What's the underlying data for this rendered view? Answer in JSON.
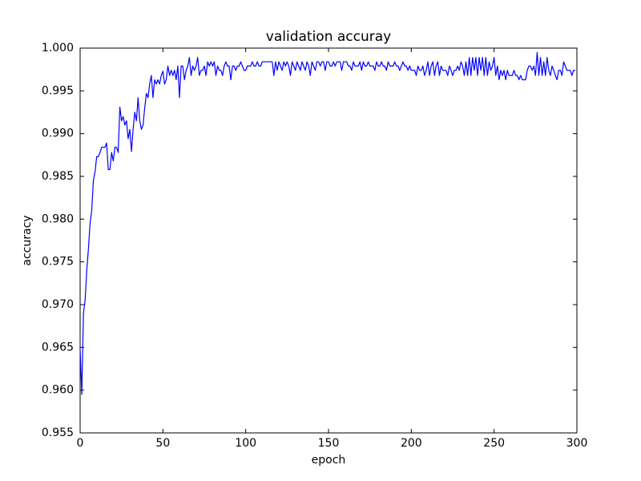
{
  "chart_data": {
    "type": "line",
    "title": "validation accuray",
    "xlabel": "epoch",
    "ylabel": "accuracy",
    "color": "#0000ff",
    "x": [
      0,
      1,
      2,
      3,
      4,
      5,
      6,
      7,
      8,
      9,
      10,
      11,
      12,
      13,
      14,
      15,
      16,
      17,
      18,
      19,
      20,
      21,
      22,
      23,
      24,
      25,
      26,
      27,
      28,
      29,
      30,
      31,
      32,
      33,
      34,
      35,
      36,
      37,
      38,
      39,
      40,
      41,
      42,
      43,
      44,
      45,
      46,
      47,
      48,
      49,
      50,
      51,
      52,
      53,
      54,
      55,
      56,
      57,
      58,
      59,
      60,
      61,
      62,
      63,
      64,
      65,
      66,
      67,
      68,
      69,
      70,
      71,
      72,
      73,
      74,
      75,
      76,
      77,
      78,
      79,
      80,
      81,
      82,
      83,
      84,
      85,
      86,
      87,
      88,
      89,
      90,
      91,
      92,
      93,
      94,
      95,
      96,
      97,
      98,
      99,
      100,
      101,
      102,
      103,
      104,
      105,
      106,
      107,
      108,
      109,
      110,
      111,
      112,
      113,
      114,
      115,
      116,
      117,
      118,
      119,
      120,
      121,
      122,
      123,
      124,
      125,
      126,
      127,
      128,
      129,
      130,
      131,
      132,
      133,
      134,
      135,
      136,
      137,
      138,
      139,
      140,
      141,
      142,
      143,
      144,
      145,
      146,
      147,
      148,
      149,
      150,
      151,
      152,
      153,
      154,
      155,
      156,
      157,
      158,
      159,
      160,
      161,
      162,
      163,
      164,
      165,
      166,
      167,
      168,
      169,
      170,
      171,
      172,
      173,
      174,
      175,
      176,
      177,
      178,
      179,
      180,
      181,
      182,
      183,
      184,
      185,
      186,
      187,
      188,
      189,
      190,
      191,
      192,
      193,
      194,
      195,
      196,
      197,
      198,
      199,
      200,
      201,
      202,
      203,
      204,
      205,
      206,
      207,
      208,
      209,
      210,
      211,
      212,
      213,
      214,
      215,
      216,
      217,
      218,
      219,
      220,
      221,
      222,
      223,
      224,
      225,
      226,
      227,
      228,
      229,
      230,
      231,
      232,
      233,
      234,
      235,
      236,
      237,
      238,
      239,
      240,
      241,
      242,
      243,
      244,
      245,
      246,
      247,
      248,
      249,
      250,
      251,
      252,
      253,
      254,
      255,
      256,
      257,
      258,
      259,
      260,
      261,
      262,
      263,
      264,
      265,
      266,
      267,
      268,
      269,
      270,
      271,
      272,
      273,
      274,
      275,
      276,
      277,
      278,
      279,
      280,
      281,
      282,
      283,
      284,
      285,
      286,
      287,
      288,
      289,
      290,
      291,
      292,
      293,
      294,
      295,
      296,
      297,
      298,
      299
    ],
    "values": [
      0.9648,
      0.9595,
      0.969,
      0.9705,
      0.974,
      0.9765,
      0.9795,
      0.981,
      0.9845,
      0.9855,
      0.9873,
      0.9873,
      0.9878,
      0.9884,
      0.9884,
      0.9884,
      0.9889,
      0.9858,
      0.9858,
      0.9878,
      0.9868,
      0.9884,
      0.9884,
      0.9878,
      0.9931,
      0.9915,
      0.992,
      0.991,
      0.9915,
      0.9894,
      0.9905,
      0.9879,
      0.9905,
      0.9925,
      0.9915,
      0.9942,
      0.9915,
      0.9905,
      0.991,
      0.993,
      0.9947,
      0.9942,
      0.9958,
      0.9968,
      0.9942,
      0.9963,
      0.9958,
      0.9963,
      0.9958,
      0.9968,
      0.9973,
      0.9958,
      0.9963,
      0.9979,
      0.9968,
      0.9974,
      0.9968,
      0.9974,
      0.9963,
      0.9979,
      0.9942,
      0.9979,
      0.9979,
      0.9963,
      0.9974,
      0.9979,
      0.9989,
      0.9968,
      0.9979,
      0.9974,
      0.9979,
      0.9989,
      0.9968,
      0.9974,
      0.9974,
      0.9979,
      0.9968,
      0.9984,
      0.9979,
      0.9984,
      0.9979,
      0.9984,
      0.9968,
      0.9979,
      0.9974,
      0.9974,
      0.9968,
      0.9979,
      0.9984,
      0.9979,
      0.9979,
      0.9963,
      0.9979,
      0.9979,
      0.9974,
      0.9979,
      0.9979,
      0.9984,
      0.9979,
      0.9974,
      0.9974,
      0.9979,
      0.9979,
      0.9979,
      0.9984,
      0.9979,
      0.9979,
      0.9984,
      0.9979,
      0.9979,
      0.9984,
      0.9984,
      0.9984,
      0.9984,
      0.9984,
      0.9984,
      0.9984,
      0.9968,
      0.9984,
      0.9974,
      0.9984,
      0.9979,
      0.9974,
      0.9984,
      0.9979,
      0.9984,
      0.9979,
      0.9968,
      0.9984,
      0.9979,
      0.9974,
      0.9984,
      0.9979,
      0.9974,
      0.9984,
      0.9979,
      0.9974,
      0.9984,
      0.9979,
      0.9968,
      0.9984,
      0.9979,
      0.9974,
      0.9984,
      0.9984,
      0.9979,
      0.9984,
      0.9984,
      0.9974,
      0.9984,
      0.9984,
      0.9979,
      0.9979,
      0.9984,
      0.9979,
      0.9984,
      0.9984,
      0.9984,
      0.9974,
      0.9984,
      0.9984,
      0.9984,
      0.9979,
      0.9979,
      0.9974,
      0.9984,
      0.9979,
      0.9979,
      0.9979,
      0.9984,
      0.9974,
      0.9984,
      0.9979,
      0.9979,
      0.9984,
      0.9979,
      0.9979,
      0.9979,
      0.9974,
      0.9984,
      0.9979,
      0.9979,
      0.9984,
      0.9979,
      0.9979,
      0.9974,
      0.9984,
      0.9979,
      0.9979,
      0.9979,
      0.9984,
      0.9979,
      0.9979,
      0.9974,
      0.9979,
      0.9984,
      0.9979,
      0.9979,
      0.9974,
      0.9979,
      0.9974,
      0.9974,
      0.9974,
      0.9968,
      0.9979,
      0.9974,
      0.9974,
      0.9979,
      0.9968,
      0.9974,
      0.9984,
      0.9968,
      0.9979,
      0.9984,
      0.9968,
      0.9979,
      0.9984,
      0.9968,
      0.9979,
      0.9974,
      0.9974,
      0.9974,
      0.9968,
      0.9979,
      0.9974,
      0.9968,
      0.9974,
      0.9974,
      0.9979,
      0.9974,
      0.9984,
      0.9979,
      0.9968,
      0.9984,
      0.9968,
      0.9989,
      0.9968,
      0.9989,
      0.9974,
      0.9989,
      0.9968,
      0.9989,
      0.9974,
      0.9989,
      0.9968,
      0.9989,
      0.9968,
      0.9984,
      0.9974,
      0.9979,
      0.9989,
      0.9968,
      0.9979,
      0.9963,
      0.9974,
      0.9968,
      0.9974,
      0.9963,
      0.9974,
      0.9968,
      0.9968,
      0.9968,
      0.9974,
      0.9968,
      0.9968,
      0.9963,
      0.9968,
      0.9963,
      0.9963,
      0.9963,
      0.9974,
      0.9979,
      0.9979,
      0.9974,
      0.9979,
      0.9968,
      0.9995,
      0.9968,
      0.9989,
      0.9968,
      0.9984,
      0.9968,
      0.9989,
      0.9974,
      0.9968,
      0.9979,
      0.9974,
      0.9968,
      0.9963,
      0.9974,
      0.9974,
      0.9968,
      0.9984,
      0.9979,
      0.9974,
      0.9974,
      0.9974,
      0.9968,
      0.9974,
      0.9974
    ],
    "xlim": [
      0,
      300
    ],
    "xticks": [
      0,
      50,
      100,
      150,
      200,
      250,
      300
    ],
    "ylim": [
      0.955,
      1.0
    ],
    "yticks": [
      0.955,
      {
        "value": 0.96,
        "label": "0.960"
      },
      0.965,
      {
        "value": 0.97,
        "label": "0.970"
      },
      0.975,
      {
        "value": 0.98,
        "label": "0.980"
      },
      0.985,
      {
        "value": 0.99,
        "label": "0.990"
      },
      0.995,
      {
        "value": 1,
        "label": "1.000"
      }
    ]
  }
}
